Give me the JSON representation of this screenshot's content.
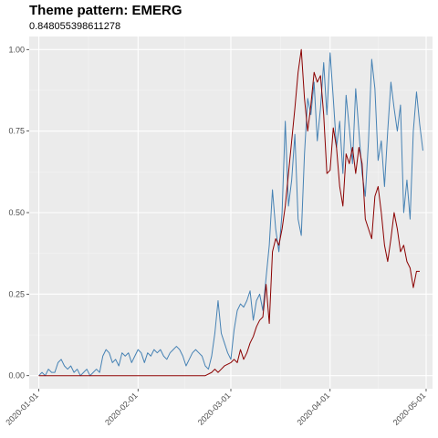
{
  "chart_data": {
    "type": "line",
    "title": "Theme pattern: EMERG",
    "subtitle": "0.848055398611278",
    "xlabel": "",
    "ylabel": "",
    "xlim": [
      "2019-12-29",
      "2020-05-03"
    ],
    "ylim": [
      -0.04,
      1.04
    ],
    "grid": true,
    "x_tick_labels": [
      "2020-01-01",
      "2020-02-01",
      "2020-03-01",
      "2020-04-01",
      "2020-05-01"
    ],
    "y_tick_labels": [
      "0.00",
      "0.25",
      "0.50",
      "0.75",
      "1.00"
    ],
    "y_ticks": [
      0,
      0.25,
      0.5,
      0.75,
      1.0
    ],
    "series": [
      {
        "color": "#4682b4",
        "points": [
          [
            "2020-01-01",
            0.0
          ],
          [
            "2020-01-02",
            0.01
          ],
          [
            "2020-01-03",
            0.0
          ],
          [
            "2020-01-04",
            0.02
          ],
          [
            "2020-01-05",
            0.01
          ],
          [
            "2020-01-06",
            0.01
          ],
          [
            "2020-01-07",
            0.04
          ],
          [
            "2020-01-08",
            0.05
          ],
          [
            "2020-01-09",
            0.03
          ],
          [
            "2020-01-10",
            0.02
          ],
          [
            "2020-01-11",
            0.03
          ],
          [
            "2020-01-12",
            0.01
          ],
          [
            "2020-01-13",
            0.02
          ],
          [
            "2020-01-14",
            0.0
          ],
          [
            "2020-01-15",
            0.01
          ],
          [
            "2020-01-16",
            0.02
          ],
          [
            "2020-01-17",
            0.0
          ],
          [
            "2020-01-18",
            0.01
          ],
          [
            "2020-01-19",
            0.02
          ],
          [
            "2020-01-20",
            0.01
          ],
          [
            "2020-01-21",
            0.06
          ],
          [
            "2020-01-22",
            0.08
          ],
          [
            "2020-01-23",
            0.07
          ],
          [
            "2020-01-24",
            0.04
          ],
          [
            "2020-01-25",
            0.05
          ],
          [
            "2020-01-26",
            0.03
          ],
          [
            "2020-01-27",
            0.07
          ],
          [
            "2020-01-28",
            0.06
          ],
          [
            "2020-01-29",
            0.07
          ],
          [
            "2020-01-30",
            0.04
          ],
          [
            "2020-01-31",
            0.06
          ],
          [
            "2020-02-01",
            0.08
          ],
          [
            "2020-02-02",
            0.07
          ],
          [
            "2020-02-03",
            0.04
          ],
          [
            "2020-02-04",
            0.07
          ],
          [
            "2020-02-05",
            0.06
          ],
          [
            "2020-02-06",
            0.08
          ],
          [
            "2020-02-07",
            0.07
          ],
          [
            "2020-02-08",
            0.08
          ],
          [
            "2020-02-09",
            0.06
          ],
          [
            "2020-02-10",
            0.05
          ],
          [
            "2020-02-11",
            0.07
          ],
          [
            "2020-02-12",
            0.08
          ],
          [
            "2020-02-13",
            0.09
          ],
          [
            "2020-02-14",
            0.08
          ],
          [
            "2020-02-15",
            0.06
          ],
          [
            "2020-02-16",
            0.03
          ],
          [
            "2020-02-17",
            0.05
          ],
          [
            "2020-02-18",
            0.07
          ],
          [
            "2020-02-19",
            0.08
          ],
          [
            "2020-02-20",
            0.07
          ],
          [
            "2020-02-21",
            0.06
          ],
          [
            "2020-02-22",
            0.03
          ],
          [
            "2020-02-23",
            0.02
          ],
          [
            "2020-02-24",
            0.06
          ],
          [
            "2020-02-25",
            0.13
          ],
          [
            "2020-02-26",
            0.23
          ],
          [
            "2020-02-27",
            0.13
          ],
          [
            "2020-02-28",
            0.1
          ],
          [
            "2020-02-29",
            0.07
          ],
          [
            "2020-03-01",
            0.05
          ],
          [
            "2020-03-02",
            0.14
          ],
          [
            "2020-03-03",
            0.2
          ],
          [
            "2020-03-04",
            0.22
          ],
          [
            "2020-03-05",
            0.21
          ],
          [
            "2020-03-06",
            0.23
          ],
          [
            "2020-03-07",
            0.26
          ],
          [
            "2020-03-08",
            0.17
          ],
          [
            "2020-03-09",
            0.23
          ],
          [
            "2020-03-10",
            0.25
          ],
          [
            "2020-03-11",
            0.2
          ],
          [
            "2020-03-12",
            0.3
          ],
          [
            "2020-03-13",
            0.4
          ],
          [
            "2020-03-14",
            0.57
          ],
          [
            "2020-03-15",
            0.45
          ],
          [
            "2020-03-16",
            0.38
          ],
          [
            "2020-03-17",
            0.5
          ],
          [
            "2020-03-18",
            0.78
          ],
          [
            "2020-03-19",
            0.52
          ],
          [
            "2020-03-20",
            0.6
          ],
          [
            "2020-03-21",
            0.74
          ],
          [
            "2020-03-22",
            0.48
          ],
          [
            "2020-03-23",
            0.43
          ],
          [
            "2020-03-24",
            0.68
          ],
          [
            "2020-03-25",
            0.85
          ],
          [
            "2020-03-26",
            0.8
          ],
          [
            "2020-03-27",
            0.9
          ],
          [
            "2020-03-28",
            0.72
          ],
          [
            "2020-03-29",
            0.82
          ],
          [
            "2020-03-30",
            0.96
          ],
          [
            "2020-03-31",
            0.8
          ],
          [
            "2020-04-01",
            0.99
          ],
          [
            "2020-04-02",
            0.85
          ],
          [
            "2020-04-03",
            0.7
          ],
          [
            "2020-04-04",
            0.78
          ],
          [
            "2020-04-05",
            0.62
          ],
          [
            "2020-04-06",
            0.86
          ],
          [
            "2020-04-07",
            0.76
          ],
          [
            "2020-04-08",
            0.65
          ],
          [
            "2020-04-09",
            0.88
          ],
          [
            "2020-04-10",
            0.75
          ],
          [
            "2020-04-11",
            0.62
          ],
          [
            "2020-04-12",
            0.55
          ],
          [
            "2020-04-13",
            0.72
          ],
          [
            "2020-04-14",
            0.97
          ],
          [
            "2020-04-15",
            0.88
          ],
          [
            "2020-04-16",
            0.66
          ],
          [
            "2020-04-17",
            0.72
          ],
          [
            "2020-04-18",
            0.58
          ],
          [
            "2020-04-19",
            0.75
          ],
          [
            "2020-04-20",
            0.9
          ],
          [
            "2020-04-21",
            0.82
          ],
          [
            "2020-04-22",
            0.75
          ],
          [
            "2020-04-23",
            0.83
          ],
          [
            "2020-04-24",
            0.5
          ],
          [
            "2020-04-25",
            0.6
          ],
          [
            "2020-04-26",
            0.48
          ],
          [
            "2020-04-27",
            0.75
          ],
          [
            "2020-04-28",
            0.87
          ],
          [
            "2020-04-29",
            0.77
          ],
          [
            "2020-04-30",
            0.69
          ]
        ]
      },
      {
        "color": "#8b0000",
        "points": [
          [
            "2020-01-01",
            0.0
          ],
          [
            "2020-01-15",
            0.0
          ],
          [
            "2020-02-01",
            0.0
          ],
          [
            "2020-02-15",
            0.0
          ],
          [
            "2020-02-20",
            0.0
          ],
          [
            "2020-02-22",
            0.0
          ],
          [
            "2020-02-24",
            0.01
          ],
          [
            "2020-02-25",
            0.02
          ],
          [
            "2020-02-26",
            0.01
          ],
          [
            "2020-02-27",
            0.02
          ],
          [
            "2020-02-28",
            0.03
          ],
          [
            "2020-03-01",
            0.04
          ],
          [
            "2020-03-02",
            0.05
          ],
          [
            "2020-03-03",
            0.04
          ],
          [
            "2020-03-04",
            0.08
          ],
          [
            "2020-03-05",
            0.05
          ],
          [
            "2020-03-06",
            0.07
          ],
          [
            "2020-03-07",
            0.1
          ],
          [
            "2020-03-08",
            0.12
          ],
          [
            "2020-03-09",
            0.15
          ],
          [
            "2020-03-10",
            0.17
          ],
          [
            "2020-03-11",
            0.18
          ],
          [
            "2020-03-12",
            0.28
          ],
          [
            "2020-03-13",
            0.16
          ],
          [
            "2020-03-14",
            0.38
          ],
          [
            "2020-03-15",
            0.42
          ],
          [
            "2020-03-16",
            0.4
          ],
          [
            "2020-03-17",
            0.45
          ],
          [
            "2020-03-18",
            0.52
          ],
          [
            "2020-03-19",
            0.62
          ],
          [
            "2020-03-20",
            0.72
          ],
          [
            "2020-03-21",
            0.82
          ],
          [
            "2020-03-22",
            0.93
          ],
          [
            "2020-03-23",
            1.0
          ],
          [
            "2020-03-24",
            0.85
          ],
          [
            "2020-03-25",
            0.75
          ],
          [
            "2020-03-26",
            0.83
          ],
          [
            "2020-03-27",
            0.93
          ],
          [
            "2020-03-28",
            0.9
          ],
          [
            "2020-03-29",
            0.92
          ],
          [
            "2020-03-30",
            0.8
          ],
          [
            "2020-03-31",
            0.62
          ],
          [
            "2020-04-01",
            0.63
          ],
          [
            "2020-04-02",
            0.76
          ],
          [
            "2020-04-03",
            0.7
          ],
          [
            "2020-04-04",
            0.58
          ],
          [
            "2020-04-05",
            0.52
          ],
          [
            "2020-04-06",
            0.68
          ],
          [
            "2020-04-07",
            0.65
          ],
          [
            "2020-04-08",
            0.7
          ],
          [
            "2020-04-09",
            0.62
          ],
          [
            "2020-04-10",
            0.7
          ],
          [
            "2020-04-11",
            0.65
          ],
          [
            "2020-04-12",
            0.48
          ],
          [
            "2020-04-13",
            0.45
          ],
          [
            "2020-04-14",
            0.42
          ],
          [
            "2020-04-15",
            0.55
          ],
          [
            "2020-04-16",
            0.58
          ],
          [
            "2020-04-17",
            0.5
          ],
          [
            "2020-04-18",
            0.4
          ],
          [
            "2020-04-19",
            0.35
          ],
          [
            "2020-04-20",
            0.42
          ],
          [
            "2020-04-21",
            0.5
          ],
          [
            "2020-04-22",
            0.45
          ],
          [
            "2020-04-23",
            0.38
          ],
          [
            "2020-04-24",
            0.4
          ],
          [
            "2020-04-25",
            0.35
          ],
          [
            "2020-04-26",
            0.33
          ],
          [
            "2020-04-27",
            0.27
          ],
          [
            "2020-04-28",
            0.32
          ],
          [
            "2020-04-29",
            0.32
          ]
        ]
      }
    ]
  }
}
